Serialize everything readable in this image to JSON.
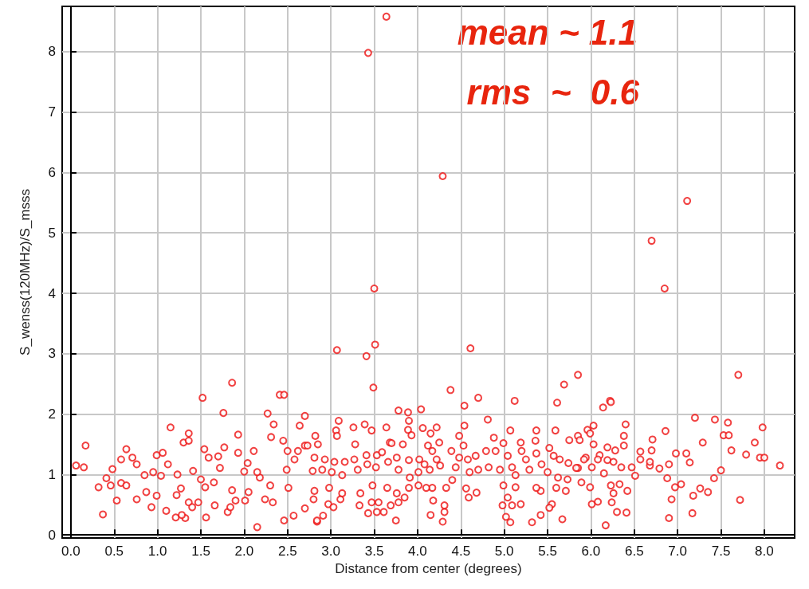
{
  "chart_data": {
    "type": "scatter",
    "xlabel": "Distance from center (degrees)",
    "ylabel": "S_wenss(120MHz)/S_msss",
    "annotations": [
      "mean ~ 1.1",
      "rms  ~  0.6"
    ],
    "xlim": [
      -0.1,
      8.35
    ],
    "ylim": [
      -0.05,
      8.75
    ],
    "xticks": [
      {
        "value": 0,
        "label": "0.0"
      },
      {
        "value": 0.5,
        "label": "0.5"
      },
      {
        "value": 1,
        "label": "1.0"
      },
      {
        "value": 1.5,
        "label": "1.5"
      },
      {
        "value": 2,
        "label": "2.0"
      },
      {
        "value": 2.5,
        "label": "2.5"
      },
      {
        "value": 3,
        "label": "3.0"
      },
      {
        "value": 3.5,
        "label": "3.5"
      },
      {
        "value": 4,
        "label": "4.0"
      },
      {
        "value": 4.5,
        "label": "4.5"
      },
      {
        "value": 5,
        "label": "5.0"
      },
      {
        "value": 5.5,
        "label": "5.5"
      },
      {
        "value": 6,
        "label": "6.0"
      },
      {
        "value": 6.5,
        "label": "6.5"
      },
      {
        "value": 7,
        "label": "7.0"
      },
      {
        "value": 7.5,
        "label": "7.5"
      },
      {
        "value": 8,
        "label": "8.0"
      }
    ],
    "yticks": [
      0,
      1,
      2,
      3,
      4,
      5,
      6,
      7,
      8
    ],
    "grid": true,
    "marker": "circle",
    "series": [
      {
        "color": "#ee1111",
        "x": [
          3.43,
          3.64,
          4.29,
          7.11,
          6.7,
          6.85,
          3.5,
          3.07,
          3.41,
          3.51,
          4.61,
          7.7,
          5.85,
          3.49,
          4.38,
          5.69,
          4.7,
          1.52,
          1.86,
          2.41,
          2.46,
          1.76,
          2.27,
          5.12,
          6.22,
          2.15,
          2.46,
          0.37,
          1.32,
          5.07,
          6.17,
          6.9,
          5.67,
          2.84,
          3.75,
          4.29,
          4.15,
          5.02,
          5.32,
          5.42,
          7.17,
          7.72,
          8.18,
          7.98,
          7.89,
          7.2,
          7.43,
          7.58,
          7.62,
          7.5,
          7.42,
          7.35,
          7.18,
          6.93,
          7.14,
          7.29,
          6.86,
          6.71,
          6.7,
          6.57,
          6.51,
          6.42,
          6.41,
          6.24,
          6.3,
          6.14,
          6.23,
          5.61,
          6.03,
          6.4,
          6.38,
          6.38,
          6.28,
          6.19,
          6.01,
          6.08,
          5.89,
          5.99,
          5.71,
          5.94,
          6.1,
          6.19,
          5.85,
          5.6,
          5.55,
          6.88,
          6.97,
          7.04,
          7.26,
          6.9,
          6.79,
          6.68,
          6.98,
          7.1,
          7.53,
          7.59,
          7.79,
          7.95,
          8.0,
          0.17,
          0.06,
          0.15,
          0.32,
          0.41,
          0.46,
          0.48,
          0.53,
          0.58,
          0.64,
          0.58,
          0.64,
          0.71,
          0.76,
          0.76,
          0.87,
          0.85,
          0.93,
          0.95,
          0.99,
          0.99,
          1.06,
          1.04,
          1.1,
          1.12,
          1.15,
          1.21,
          1.22,
          1.28,
          1.27,
          1.23,
          1.3,
          1.36,
          1.36,
          1.36,
          1.4,
          1.47,
          1.5,
          1.55,
          1.56,
          1.59,
          1.54,
          1.65,
          1.66,
          1.7,
          1.77,
          1.81,
          1.84,
          1.86,
          1.9,
          1.93,
          1.93,
          2.01,
          2.0,
          2.04,
          2.05,
          2.11,
          2.18,
          2.24,
          2.31,
          2.34,
          2.33,
          2.45,
          2.5,
          2.57,
          2.7,
          2.64,
          2.7,
          2.51,
          2.3,
          1.41,
          1.72,
          2.15,
          2.49,
          2.58,
          2.62,
          2.7,
          3.09,
          3.06,
          3.07,
          3.26,
          3.39,
          3.47,
          3.64,
          3.78,
          3.89,
          3.9,
          3.89,
          3.93,
          4.04,
          4.06,
          4.15,
          4.22,
          4.25,
          4.54,
          4.48,
          4.54,
          4.81,
          4.88,
          4.99,
          5.07,
          5.19,
          5.36,
          5.37,
          5.59,
          3.28,
          3.68,
          3.83,
          2.85,
          2.82,
          2.84,
          2.91,
          2.8,
          2.97,
          3.03,
          3.11,
          3.33,
          3.43,
          3.47,
          3.55,
          3.53,
          3.61,
          3.69,
          3.76,
          3.78,
          3.85,
          4.01,
          4.18,
          4.31,
          4.31,
          4.59,
          4.68,
          4.98,
          5.04,
          5.09,
          5.19,
          5.52,
          5.42,
          5.37,
          5.13,
          4.99,
          4.56,
          4.4,
          4.17,
          4.1,
          4.33,
          3.9,
          3.65,
          3.48,
          3.34,
          3.13,
          2.98,
          2.81,
          2.73,
          2.81,
          2.79,
          2.93,
          2.9,
          3.04,
          3.01,
          3.16,
          3.13,
          3.27,
          3.31,
          3.42,
          3.41,
          3.53,
          3.52,
          3.59,
          3.66,
          3.7,
          3.76,
          3.78,
          3.9,
          3.91,
          4.02,
          4.01,
          4.12,
          4.08,
          4.17,
          4.14,
          4.22,
          4.26,
          4.39,
          4.44,
          4.48,
          4.53,
          4.58,
          4.6,
          4.67,
          4.7,
          4.79,
          4.82,
          4.9,
          4.95,
          5.04,
          5.09,
          5.13,
          5.2,
          5.25,
          5.29,
          5.37,
          5.43,
          5.5,
          5.57,
          5.52,
          5.64,
          5.74,
          5.83,
          5.92,
          6.01,
          6.08,
          6.15,
          6.26,
          6.35,
          6.47,
          6.57,
          6.68,
          5.62,
          5.73,
          6.23,
          6.33,
          6.26,
          5.85,
          5.96,
          5.99,
          5.75,
          5.87,
          6.03
        ],
        "values": [
          7.98,
          8.58,
          5.94,
          5.53,
          4.87,
          4.08,
          4.08,
          3.06,
          2.96,
          3.15,
          3.09,
          2.65,
          2.65,
          2.44,
          2.4,
          2.49,
          2.27,
          2.27,
          2.52,
          2.32,
          2.32,
          2.02,
          2.01,
          2.22,
          2.22,
          0.13,
          0.24,
          0.34,
          0.28,
          0.21,
          0.16,
          0.28,
          0.26,
          0.22,
          0.24,
          0.22,
          0.33,
          0.3,
          0.21,
          0.33,
          0.36,
          0.58,
          1.15,
          1.78,
          1.53,
          1.94,
          1.91,
          1.86,
          1.4,
          1.07,
          0.94,
          0.71,
          0.65,
          0.59,
          1.2,
          1.53,
          1.72,
          1.58,
          1.4,
          1.38,
          0.98,
          0.73,
          0.37,
          0.54,
          0.38,
          2.11,
          2.2,
          2.19,
          1.81,
          1.83,
          1.64,
          1.48,
          1.4,
          1.45,
          0.51,
          0.55,
          0.87,
          0.79,
          0.73,
          1.28,
          1.32,
          1.24,
          1.11,
          0.78,
          0.51,
          0.94,
          0.79,
          0.84,
          0.77,
          1.17,
          1.1,
          1.15,
          1.35,
          1.35,
          1.65,
          1.65,
          1.33,
          1.28,
          1.28,
          1.48,
          1.15,
          1.12,
          0.79,
          0.94,
          0.82,
          1.09,
          0.57,
          1.25,
          1.42,
          0.86,
          0.82,
          1.28,
          0.59,
          1.17,
          0.71,
          0.99,
          0.46,
          1.04,
          1.32,
          0.65,
          1.36,
          0.98,
          0.4,
          1.17,
          1.78,
          0.29,
          0.66,
          0.33,
          0.77,
          1.0,
          1.53,
          1.68,
          1.56,
          0.54,
          0.46,
          0.54,
          0.92,
          0.79,
          0.29,
          1.28,
          1.42,
          0.87,
          0.49,
          1.3,
          1.45,
          0.38,
          0.46,
          0.74,
          0.57,
          1.66,
          1.36,
          0.57,
          1.05,
          1.19,
          0.71,
          1.39,
          0.95,
          0.59,
          1.62,
          1.83,
          0.54,
          1.56,
          1.39,
          0.32,
          1.97,
          1.81,
          0.44,
          0.78,
          0.82,
          1.06,
          1.11,
          1.04,
          1.08,
          1.25,
          1.39,
          1.48,
          1.89,
          1.73,
          1.64,
          1.78,
          1.83,
          1.73,
          1.78,
          2.06,
          2.03,
          1.89,
          1.74,
          1.65,
          2.08,
          1.77,
          1.68,
          1.78,
          1.53,
          1.81,
          1.64,
          2.14,
          1.91,
          1.61,
          1.52,
          1.73,
          1.53,
          1.56,
          1.73,
          1.73,
          1.5,
          1.53,
          1.5,
          1.5,
          1.64,
          0.24,
          0.32,
          0.59,
          0.51,
          0.46,
          0.59,
          0.49,
          0.36,
          0.54,
          0.54,
          0.38,
          0.38,
          0.49,
          0.69,
          0.54,
          0.62,
          0.82,
          0.57,
          0.49,
          0.38,
          0.62,
          0.7,
          0.49,
          0.62,
          0.49,
          0.51,
          0.45,
          0.73,
          0.78,
          0.79,
          0.82,
          0.77,
          0.91,
          0.78,
          0.78,
          0.78,
          0.78,
          0.78,
          0.82,
          0.69,
          0.69,
          0.78,
          0.73,
          1.48,
          1.28,
          1.06,
          1.25,
          1.08,
          1.21,
          1.04,
          1.21,
          0.99,
          1.25,
          1.08,
          1.17,
          1.32,
          1.32,
          1.12,
          1.37,
          1.21,
          1.52,
          1.28,
          1.08,
          1.24,
          0.95,
          1.25,
          1.04,
          1.48,
          1.17,
          1.39,
          1.08,
          1.25,
          1.15,
          1.39,
          1.12,
          1.28,
          1.48,
          1.25,
          1.04,
          1.31,
          1.08,
          1.39,
          1.12,
          1.39,
          1.08,
          1.31,
          1.12,
          0.99,
          1.39,
          1.25,
          1.08,
          1.35,
          1.17,
          1.04,
          1.31,
          1.44,
          1.25,
          1.19,
          1.11,
          1.25,
          1.12,
          1.25,
          1.02,
          1.21,
          1.12,
          1.12,
          1.25,
          1.21,
          0.95,
          0.92,
          0.82,
          0.84,
          0.69,
          1.64,
          1.74,
          1.68,
          1.57,
          1.57,
          1.5
        ]
      }
    ]
  }
}
